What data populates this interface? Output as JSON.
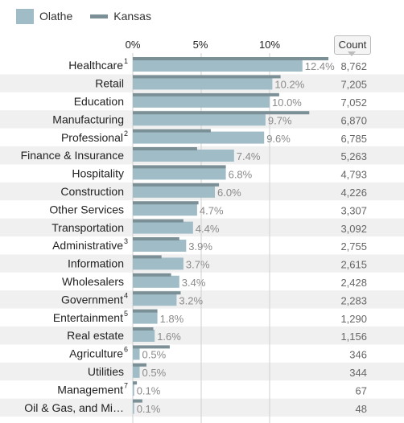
{
  "legend": {
    "olathe_label": "Olathe",
    "kansas_label": "Kansas",
    "olathe_color": "#9fbcc7",
    "kansas_color": "#7b9096"
  },
  "count_header": "Count",
  "chart_data": {
    "type": "bar",
    "orientation": "horizontal",
    "x_ticks": [
      "0%",
      "5%",
      "10%"
    ],
    "xlim": [
      0,
      15
    ],
    "grid": true,
    "legend_position": "top-left",
    "categories": [
      {
        "label": "Healthcare",
        "note": "1"
      },
      {
        "label": "Retail",
        "note": ""
      },
      {
        "label": "Education",
        "note": ""
      },
      {
        "label": "Manufacturing",
        "note": ""
      },
      {
        "label": "Professional",
        "note": "2"
      },
      {
        "label": "Finance & Insurance",
        "note": ""
      },
      {
        "label": "Hospitality",
        "note": ""
      },
      {
        "label": "Construction",
        "note": ""
      },
      {
        "label": "Other Services",
        "note": ""
      },
      {
        "label": "Transportation",
        "note": ""
      },
      {
        "label": "Administrative",
        "note": "3"
      },
      {
        "label": "Information",
        "note": ""
      },
      {
        "label": "Wholesalers",
        "note": ""
      },
      {
        "label": "Government",
        "note": "4"
      },
      {
        "label": "Entertainment",
        "note": "5"
      },
      {
        "label": "Real estate",
        "note": ""
      },
      {
        "label": "Agriculture",
        "note": "6"
      },
      {
        "label": "Utilities",
        "note": ""
      },
      {
        "label": "Management",
        "note": "7"
      },
      {
        "label": "Oil & Gas, and Mi…",
        "note": ""
      }
    ],
    "series": [
      {
        "name": "Olathe",
        "values": [
          12.4,
          10.2,
          10.0,
          9.7,
          9.6,
          7.4,
          6.8,
          6.0,
          4.7,
          4.4,
          3.9,
          3.7,
          3.4,
          3.2,
          1.8,
          1.6,
          0.5,
          0.5,
          0.1,
          0.1
        ],
        "value_labels": [
          "12.4%",
          "10.2%",
          "10.0%",
          "9.7%",
          "9.6%",
          "7.4%",
          "6.8%",
          "6.0%",
          "4.7%",
          "4.4%",
          "3.9%",
          "3.7%",
          "3.4%",
          "3.2%",
          "1.8%",
          "1.6%",
          "0.5%",
          "0.5%",
          "0.1%",
          "0.1%"
        ]
      },
      {
        "name": "Kansas",
        "values": [
          14.3,
          10.8,
          10.7,
          12.9,
          5.7,
          4.7,
          6.8,
          6.3,
          4.8,
          3.7,
          3.4,
          2.1,
          2.8,
          3.5,
          1.8,
          1.5,
          2.7,
          1.0,
          0.3,
          0.7
        ]
      }
    ],
    "counts": [
      "8,762",
      "7,205",
      "7,052",
      "6,870",
      "6,785",
      "5,263",
      "4,793",
      "4,226",
      "3,307",
      "3,092",
      "2,755",
      "2,615",
      "2,428",
      "2,283",
      "1,290",
      "1,156",
      "346",
      "344",
      "67",
      "48"
    ]
  }
}
